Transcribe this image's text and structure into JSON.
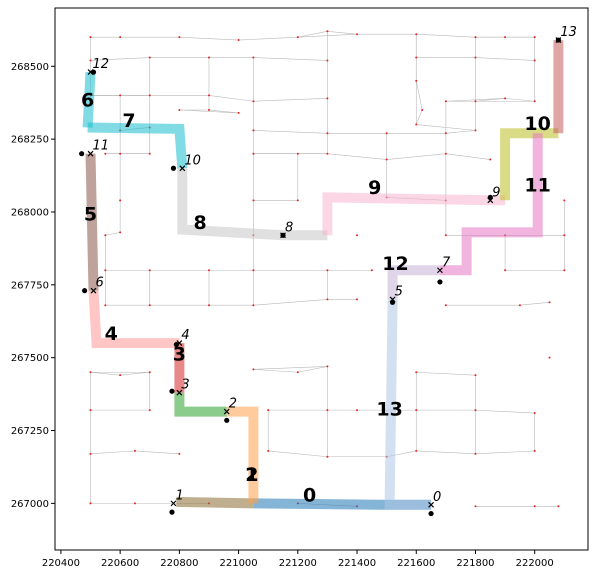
{
  "chart_data": {
    "type": "line",
    "title": "",
    "xlabel": "",
    "ylabel": "",
    "xlim": [
      220380,
      222180
    ],
    "ylim": [
      266840,
      268700
    ],
    "grid": false,
    "x_ticks": [
      220400,
      220600,
      220800,
      221000,
      221200,
      221400,
      221600,
      221800,
      222000
    ],
    "y_ticks": [
      267000,
      267250,
      267500,
      267750,
      268000,
      268250,
      268500
    ],
    "route_segments": [
      {
        "label": "0",
        "color": "#1f77b4",
        "points": [
          [
            221650,
            266995
          ],
          [
            221500,
            266995
          ],
          [
            221050,
            267000
          ]
        ],
        "label_at": [
          221240,
          267025
        ]
      },
      {
        "label": "1",
        "color": "#8c6d31",
        "points": [
          [
            221050,
            267000
          ],
          [
            220790,
            267005
          ]
        ],
        "label_at": [
          221045,
          267095
        ]
      },
      {
        "label": "2",
        "color": "#ff9f4a",
        "points": [
          [
            220960,
            267315
          ],
          [
            221050,
            267315
          ],
          [
            221050,
            267000
          ]
        ],
        "label_at": [
          221045,
          267095
        ]
      },
      {
        "label": "2",
        "color": "#2ca02c",
        "points": [
          [
            220800,
            267380
          ],
          [
            220800,
            267315
          ],
          [
            220960,
            267315
          ]
        ],
        "label_at": [
          220840,
          267345
        ]
      },
      {
        "label": "3",
        "color": "#d62728",
        "points": [
          [
            220800,
            267550
          ],
          [
            220800,
            267380
          ]
        ],
        "label_at": [
          220800,
          267510
        ]
      },
      {
        "label": "4",
        "color": "#ff9896",
        "points": [
          [
            220510,
            267730
          ],
          [
            220520,
            267550
          ],
          [
            220800,
            267550
          ]
        ],
        "label_at": [
          220570,
          267580
        ]
      },
      {
        "label": "5",
        "color": "#8c564b",
        "points": [
          [
            220500,
            268200
          ],
          [
            220510,
            267730
          ]
        ],
        "label_at": [
          220500,
          267990
        ]
      },
      {
        "label": "6",
        "color": "#17becf",
        "points": [
          [
            220500,
            268480
          ],
          [
            220490,
            268290
          ]
        ],
        "label_at": [
          220490,
          268380
        ]
      },
      {
        "label": "7",
        "color": "#17becf",
        "points": [
          [
            220490,
            268290
          ],
          [
            220800,
            268285
          ],
          [
            220810,
            268150
          ]
        ],
        "label_at": [
          220630,
          268310
        ]
      },
      {
        "label": "8",
        "color": "#c7c7c7",
        "points": [
          [
            220810,
            268150
          ],
          [
            220810,
            267940
          ],
          [
            221150,
            267920
          ],
          [
            221300,
            267920
          ]
        ],
        "label_at": [
          220870,
          267960
        ]
      },
      {
        "label": "9",
        "color": "#f7b6d2",
        "points": [
          [
            221300,
            267920
          ],
          [
            221300,
            268050
          ],
          [
            221850,
            268040
          ],
          [
            221900,
            268040
          ]
        ],
        "label_at": [
          221460,
          268080
        ]
      },
      {
        "label": "10",
        "color": "#bcbd22",
        "points": [
          [
            221900,
            268040
          ],
          [
            221900,
            268270
          ],
          [
            222080,
            268270
          ]
        ],
        "label_at": [
          222010,
          268300
        ]
      },
      {
        "label": "10",
        "color": "#c45c5c",
        "points": [
          [
            222080,
            268270
          ],
          [
            222080,
            268590
          ]
        ],
        "label_at": [
          222010,
          268300
        ]
      },
      {
        "label": "11",
        "color": "#e377c2",
        "points": [
          [
            222010,
            268270
          ],
          [
            222010,
            267930
          ],
          [
            221770,
            267930
          ],
          [
            221770,
            267800
          ],
          [
            221680,
            267800
          ]
        ],
        "label_at": [
          222010,
          268090
        ]
      },
      {
        "label": "12",
        "color": "#c5b0d5",
        "points": [
          [
            221680,
            267800
          ],
          [
            221520,
            267800
          ],
          [
            221520,
            267700
          ]
        ],
        "label_at": [
          221530,
          267820
        ]
      },
      {
        "label": "13",
        "color": "#aec7e8",
        "points": [
          [
            221520,
            267700
          ],
          [
            221510,
            266995
          ],
          [
            221650,
            266995
          ]
        ],
        "label_at": [
          221510,
          267320
        ]
      }
    ],
    "stops": [
      {
        "label": "0",
        "x": 221650,
        "y": 266995,
        "dot": [
          221650,
          266965
        ]
      },
      {
        "label": "1",
        "x": 220780,
        "y": 267000,
        "dot": [
          220775,
          266970
        ]
      },
      {
        "label": "2",
        "x": 220960,
        "y": 267315,
        "dot": [
          220960,
          267285
        ]
      },
      {
        "label": "3",
        "x": 220800,
        "y": 267380,
        "dot": [
          220775,
          267385
        ]
      },
      {
        "label": "4",
        "x": 220800,
        "y": 267550,
        "dot": [
          220790,
          267545
        ]
      },
      {
        "label": "5",
        "x": 221520,
        "y": 267700,
        "dot": [
          221520,
          267690
        ]
      },
      {
        "label": "6",
        "x": 220510,
        "y": 267730,
        "dot": [
          220480,
          267730
        ]
      },
      {
        "label": "7",
        "x": 221680,
        "y": 267800,
        "dot": [
          221680,
          267760
        ]
      },
      {
        "label": "8",
        "x": 221150,
        "y": 267920,
        "dot": [
          221150,
          267920
        ]
      },
      {
        "label": "9",
        "x": 221850,
        "y": 268040,
        "dot": [
          221850,
          268050
        ]
      },
      {
        "label": "10",
        "x": 220810,
        "y": 268150,
        "dot": [
          220780,
          268150
        ]
      },
      {
        "label": "11",
        "x": 220500,
        "y": 268200,
        "dot": [
          220470,
          268200
        ]
      },
      {
        "label": "12",
        "x": 220500,
        "y": 268480,
        "dot": [
          220510,
          268480
        ]
      },
      {
        "label": "13",
        "x": 222080,
        "y": 268590,
        "dot": [
          222080,
          268590
        ]
      }
    ],
    "road_points": [
      [
        220500,
        268600
      ],
      [
        220600,
        268600
      ],
      [
        220800,
        268600
      ],
      [
        221000,
        268590
      ],
      [
        221200,
        268600
      ],
      [
        221300,
        268620
      ],
      [
        221400,
        268610
      ],
      [
        221600,
        268610
      ],
      [
        221800,
        268600
      ],
      [
        221900,
        268600
      ],
      [
        222000,
        268600
      ],
      [
        220500,
        268520
      ],
      [
        220700,
        268530
      ],
      [
        220900,
        268530
      ],
      [
        221050,
        268530
      ],
      [
        221300,
        268520
      ],
      [
        221600,
        268530
      ],
      [
        221800,
        268530
      ],
      [
        222000,
        268520
      ],
      [
        220500,
        268400
      ],
      [
        220600,
        268400
      ],
      [
        220700,
        268400
      ],
      [
        220900,
        268400
      ],
      [
        221050,
        268380
      ],
      [
        221300,
        268390
      ],
      [
        221700,
        268380
      ],
      [
        221800,
        268380
      ],
      [
        221900,
        268390
      ],
      [
        222000,
        268380
      ],
      [
        220800,
        268350
      ],
      [
        220900,
        268350
      ],
      [
        221000,
        268340
      ],
      [
        221600,
        268450
      ],
      [
        221620,
        268350
      ],
      [
        221600,
        268300
      ],
      [
        220600,
        268280
      ],
      [
        220700,
        268290
      ],
      [
        221050,
        268280
      ],
      [
        221300,
        268270
      ],
      [
        221500,
        268270
      ],
      [
        221700,
        268270
      ],
      [
        221800,
        268280
      ],
      [
        220550,
        268200
      ],
      [
        220600,
        268200
      ],
      [
        220700,
        268200
      ],
      [
        221050,
        268200
      ],
      [
        221200,
        268200
      ],
      [
        221300,
        268200
      ],
      [
        221500,
        268180
      ],
      [
        221700,
        268200
      ],
      [
        221850,
        268180
      ],
      [
        220600,
        268040
      ],
      [
        221050,
        268040
      ],
      [
        221200,
        268040
      ],
      [
        221500,
        268050
      ],
      [
        221700,
        268040
      ],
      [
        222100,
        268040
      ],
      [
        220550,
        267920
      ],
      [
        220600,
        267930
      ],
      [
        221050,
        267920
      ],
      [
        221400,
        267920
      ],
      [
        221700,
        267920
      ],
      [
        221900,
        267920
      ],
      [
        222100,
        267920
      ],
      [
        220550,
        267800
      ],
      [
        220700,
        267800
      ],
      [
        220900,
        267800
      ],
      [
        221050,
        267800
      ],
      [
        221300,
        267800
      ],
      [
        221450,
        267800
      ],
      [
        221900,
        267800
      ],
      [
        222100,
        267800
      ],
      [
        220550,
        267680
      ],
      [
        220700,
        267680
      ],
      [
        220900,
        267680
      ],
      [
        221050,
        267680
      ],
      [
        221300,
        267700
      ],
      [
        221400,
        267700
      ],
      [
        221700,
        267680
      ],
      [
        221950,
        267680
      ],
      [
        222050,
        267690
      ],
      [
        220500,
        267450
      ],
      [
        220600,
        267440
      ],
      [
        220700,
        267450
      ],
      [
        221050,
        267460
      ],
      [
        221200,
        267450
      ],
      [
        221300,
        267470
      ],
      [
        221600,
        267450
      ],
      [
        221800,
        267440
      ],
      [
        222050,
        267500
      ],
      [
        220500,
        267320
      ],
      [
        220700,
        267320
      ],
      [
        221100,
        267320
      ],
      [
        221300,
        267320
      ],
      [
        221400,
        267320
      ],
      [
        221600,
        267320
      ],
      [
        221800,
        267320
      ],
      [
        222000,
        267310
      ],
      [
        220500,
        267170
      ],
      [
        220650,
        267180
      ],
      [
        220800,
        267170
      ],
      [
        221100,
        267180
      ],
      [
        221300,
        267160
      ],
      [
        221500,
        267160
      ],
      [
        221600,
        267180
      ],
      [
        221800,
        267170
      ],
      [
        222000,
        267180
      ],
      [
        220500,
        267000
      ],
      [
        220650,
        267000
      ],
      [
        220900,
        267000
      ],
      [
        221200,
        267000
      ],
      [
        221400,
        266990
      ],
      [
        221800,
        266990
      ],
      [
        222000,
        266990
      ],
      [
        222080,
        266990
      ]
    ]
  }
}
